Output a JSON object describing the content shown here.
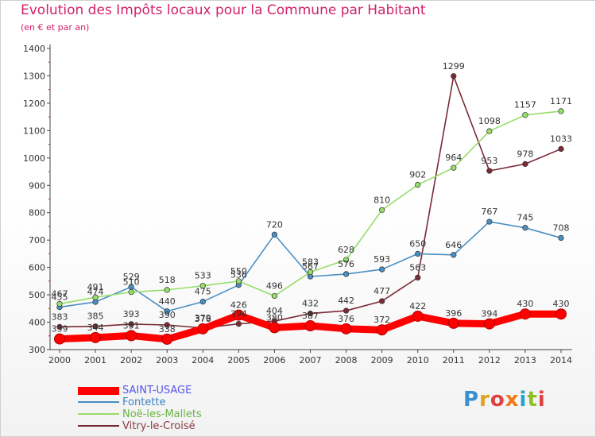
{
  "title": "Evolution des Impôts locaux pour la Commune par Habitant",
  "subtitle": "(en € et par an)",
  "logo": {
    "text": "Proxiti",
    "letter_colors": [
      "#3a8fd1",
      "#e0a020",
      "#e04040",
      "#ef7a1a",
      "#2aa0d0",
      "#8cbf26",
      "#e04040"
    ]
  },
  "chart_data": {
    "type": "line",
    "title": "Evolution des Impôts locaux pour la Commune par Habitant",
    "subtitle": "(en € et par an)",
    "x": [
      "2000",
      "2001",
      "2002",
      "2003",
      "2004",
      "2005",
      "2006",
      "2007",
      "2008",
      "2009",
      "2010",
      "2011",
      "2012",
      "2013",
      "2014"
    ],
    "ylim": [
      300,
      1400
    ],
    "yticks": [
      "300",
      "400",
      "500",
      "600",
      "700",
      "800",
      "900",
      "1000",
      "1100",
      "1200",
      "1300",
      "1400"
    ],
    "grid": false,
    "legend_position": "bottom-left",
    "series": [
      {
        "name": "Vitry-le-Croisé",
        "color": "#7a2a35",
        "legend_color": "#8a3a45",
        "values": [
          383,
          385,
          393,
          390,
          379,
          394,
          404,
          432,
          442,
          477,
          563,
          1299,
          953,
          978,
          1033
        ],
        "labels": [
          "383",
          "385",
          "393",
          "390",
          "379",
          "394",
          "404",
          "432",
          "442",
          "477",
          "563",
          "1299",
          "953",
          "978",
          "1033"
        ]
      },
      {
        "name": "Fontette",
        "color": "#4a8fc2",
        "legend_color": "#3a82c4",
        "values": [
          455,
          474,
          529,
          440,
          475,
          536,
          720,
          567,
          576,
          593,
          650,
          646,
          767,
          745,
          708
        ],
        "labels": [
          "455",
          "474",
          "529",
          "440",
          "475",
          "536",
          "720",
          "567",
          "576",
          "593",
          "650",
          "646",
          "767",
          "745",
          "708"
        ]
      },
      {
        "name": "Noë-les-Mallets",
        "color": "#96dd6a",
        "legend_color": "#6ab545",
        "values": [
          467,
          491,
          510,
          518,
          533,
          550,
          496,
          583,
          628,
          810,
          902,
          964,
          1098,
          1157,
          1171
        ],
        "labels": [
          "467",
          "491",
          "510",
          "518",
          "533",
          "550",
          "496",
          "583",
          "628",
          "810",
          "902",
          "964",
          "1098",
          "1157",
          "1171"
        ]
      },
      {
        "name": "SAINT-USAGE",
        "color": "#ff0000",
        "legend_color": "#5555ee",
        "values": [
          339,
          344,
          351,
          338,
          376,
          426,
          380,
          387,
          376,
          372,
          422,
          396,
          394,
          430,
          430
        ],
        "labels": [
          "339",
          "344",
          "351",
          "338",
          "376",
          "426",
          "380",
          "387",
          "376",
          "372",
          "422",
          "396",
          "394",
          "430",
          "430"
        ]
      }
    ]
  }
}
